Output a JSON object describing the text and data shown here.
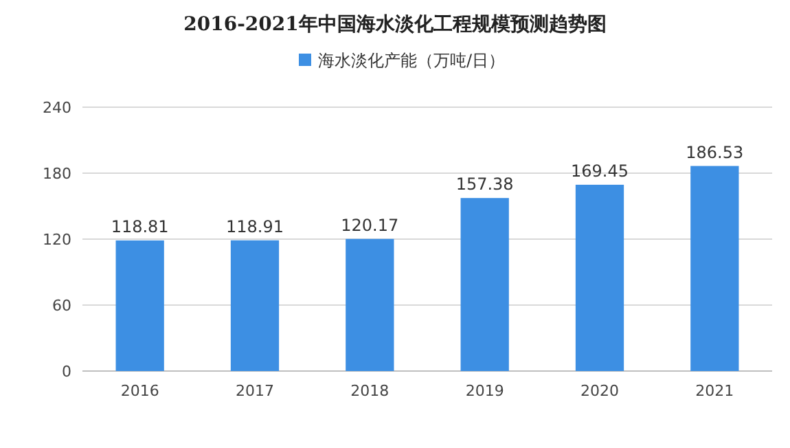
{
  "chart_data": {
    "type": "bar",
    "title": "2016-2021年中国海水淡化工程规模预测趋势图",
    "categories": [
      "2016",
      "2017",
      "2018",
      "2019",
      "2020",
      "2021"
    ],
    "series": [
      {
        "name": "海水淡化产能（万吨/日）",
        "color": "#3d8fe3",
        "values": [
          118.81,
          118.91,
          120.17,
          157.38,
          169.45,
          186.53
        ]
      }
    ],
    "ylim": [
      0,
      240
    ],
    "yticks": [
      0,
      60,
      120,
      180,
      240
    ],
    "grid": "y",
    "legend": "top",
    "data_labels": true
  }
}
